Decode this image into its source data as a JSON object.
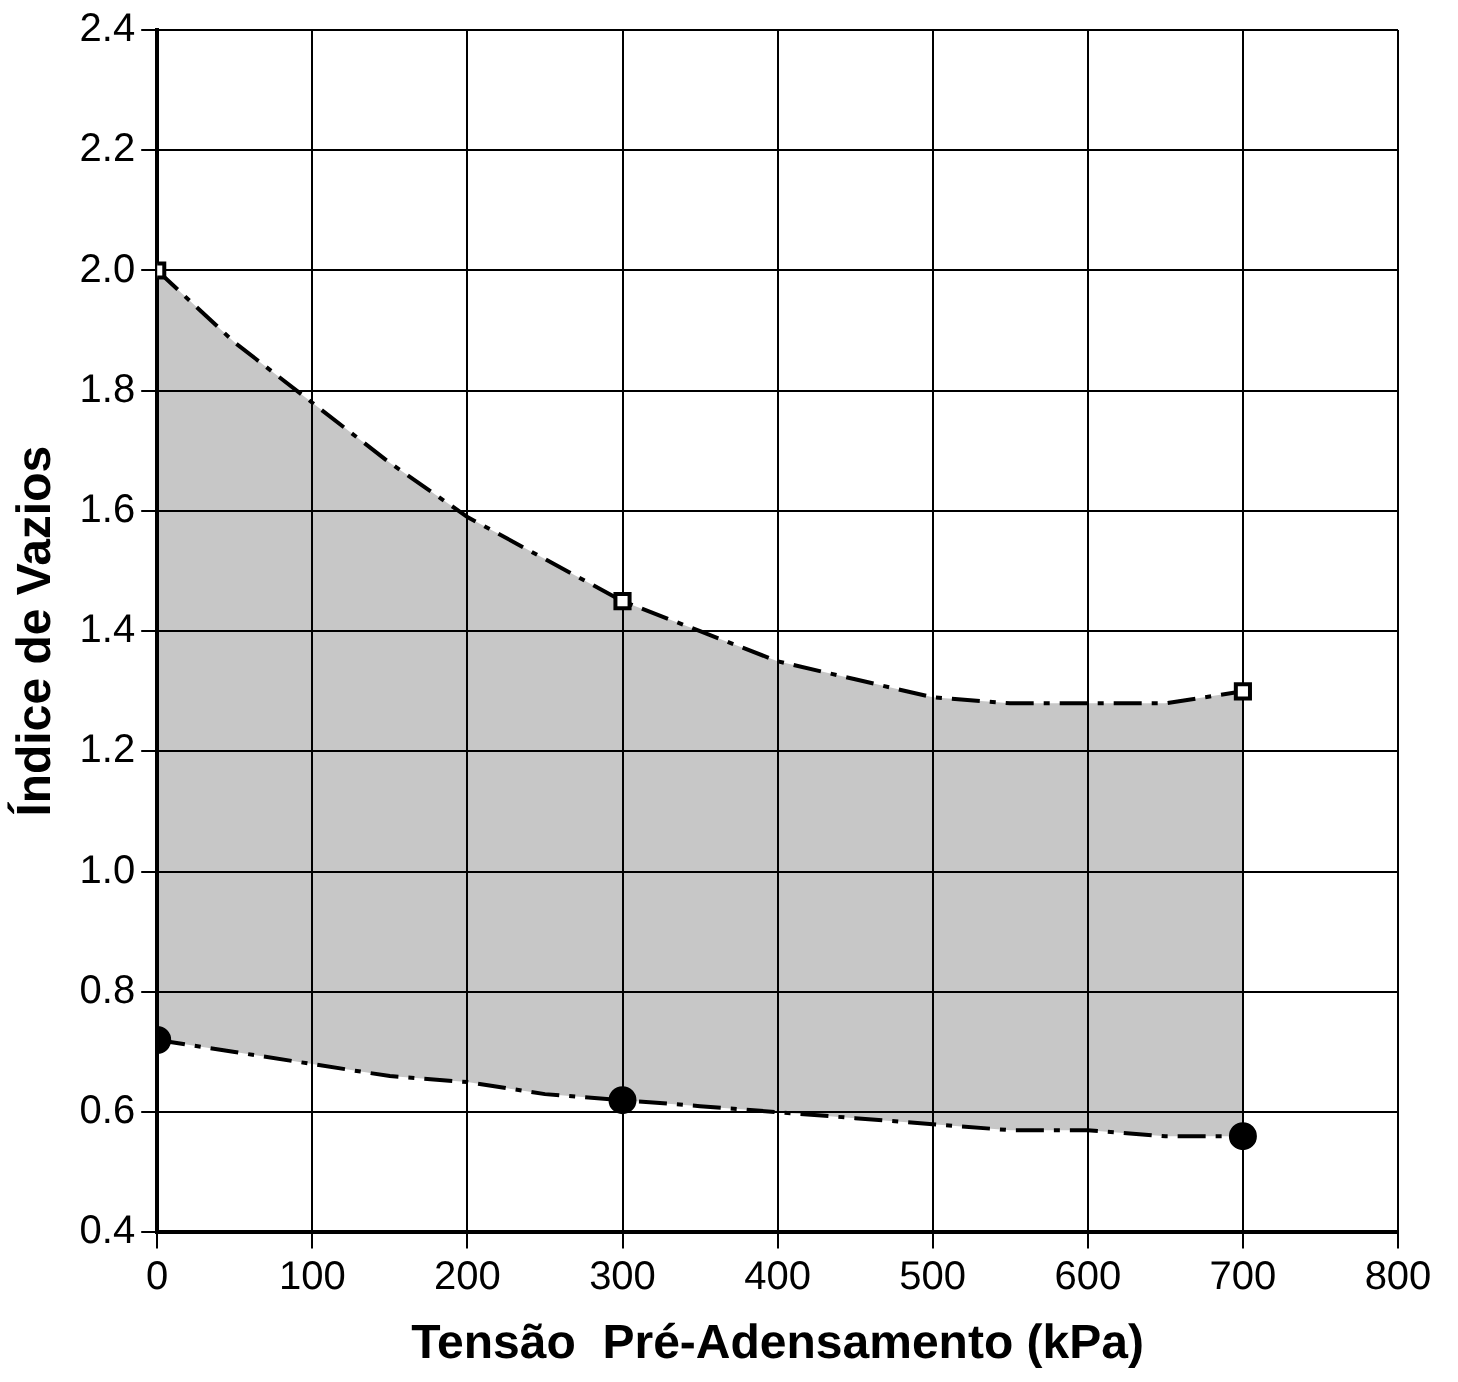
{
  "chart_data": {
    "type": "scatter",
    "xlabel": "Tensão  Pré-Adensamento (kPa)",
    "ylabel": "Índice de Vazios",
    "xlim": [
      0,
      800
    ],
    "xticks": [
      0,
      100,
      200,
      300,
      400,
      500,
      600,
      700,
      800
    ],
    "ylim": [
      0.4,
      2.4
    ],
    "yticks": [
      0.4,
      0.6,
      0.8,
      {
        "value": 1,
        "label": "1.0"
      },
      1.2,
      1.4,
      1.6,
      1.8,
      {
        "value": 2,
        "label": "2.0"
      },
      2.2,
      2.4
    ],
    "grid": true,
    "legend": false,
    "series": [
      {
        "type": "area",
        "color": "#000000",
        "line_style": "dashed",
        "marker": "none",
        "x": [
          0,
          50,
          100,
          150,
          200,
          250,
          300,
          350,
          400,
          450,
          500,
          550,
          600,
          650,
          700
        ],
        "values": [
          2.0,
          1.88,
          1.78,
          1.68,
          1.59,
          1.52,
          1.45,
          1.4,
          1.35,
          1.32,
          1.29,
          1.28,
          1.28,
          1.28,
          1.3
        ]
      },
      {
        "type": "line",
        "color": "#000000",
        "line_style": "dashed",
        "marker": "none",
        "x": [
          0,
          50,
          100,
          150,
          200,
          250,
          300,
          350,
          400,
          450,
          500,
          550,
          600,
          650,
          700
        ],
        "values": [
          0.72,
          0.7,
          0.68,
          0.66,
          0.65,
          0.63,
          0.62,
          0.61,
          0.6,
          0.59,
          0.58,
          0.57,
          0.57,
          0.56,
          0.56
        ]
      },
      {
        "type": "scatter",
        "color": "#000000",
        "marker": "square",
        "x": [
          0,
          300,
          700
        ],
        "values": [
          2.0,
          1.45,
          1.3
        ]
      },
      {
        "type": "scatter",
        "color": "#000000",
        "marker": "circle",
        "x": [
          0,
          300,
          700
        ],
        "values": [
          0.72,
          0.62,
          0.56
        ]
      }
    ]
  }
}
